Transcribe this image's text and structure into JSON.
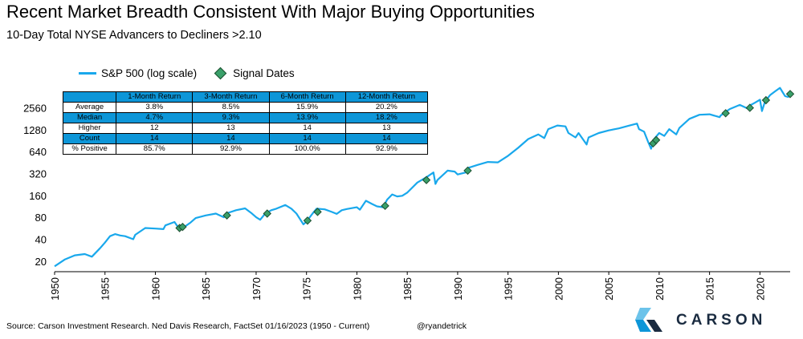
{
  "title": "Recent Market Breadth Consistent With Major Buying Opportunities",
  "subtitle": "10-Day Total NYSE Advancers to Decliners >2.10",
  "legend": {
    "line_label": "S&P 500 (log scale)",
    "marker_label": "Signal Dates"
  },
  "table": {
    "headers": [
      "",
      "1-Month Return",
      "3-Month Return",
      "6-Month Return",
      "12-Month Return"
    ],
    "rows": [
      {
        "label": "Average",
        "values": [
          "3.8%",
          "8.5%",
          "15.9%",
          "20.2%"
        ]
      },
      {
        "label": "Median",
        "values": [
          "4.7%",
          "9.3%",
          "13.9%",
          "18.2%"
        ]
      },
      {
        "label": "Higher",
        "values": [
          "12",
          "13",
          "14",
          "13"
        ]
      },
      {
        "label": "Count",
        "values": [
          "14",
          "14",
          "14",
          "14"
        ]
      },
      {
        "label": "% Positive",
        "values": [
          "85.7%",
          "92.9%",
          "100.0%",
          "92.9%"
        ]
      }
    ]
  },
  "footer": {
    "source": "Source: Carson Investment Research. Ned Davis Research, FactSet 01/16/2023 (1950 - Current)",
    "handle": "@ryandetrick"
  },
  "logo": {
    "text": "CARSON",
    "colors": [
      "#1a2b40",
      "#0d96d8",
      "#6cc3ea"
    ]
  },
  "colors": {
    "line": "#19a8ec",
    "marker_fill": "#3aa06a",
    "marker_edge": "#1b4d2e",
    "table_highlight": "#0d96d8"
  },
  "chart_data": {
    "type": "line",
    "title": "Recent Market Breadth Consistent With Major Buying Opportunities",
    "subtitle": "10-Day Total NYSE Advancers to Decliners >2.10",
    "xlabel": "",
    "ylabel": "",
    "y_scale": "log",
    "xlim": [
      1950,
      2023
    ],
    "ylim": [
      18,
      5000
    ],
    "x_ticks": [
      1950,
      1955,
      1960,
      1965,
      1970,
      1975,
      1980,
      1985,
      1990,
      1995,
      2000,
      2005,
      2010,
      2015,
      2020
    ],
    "y_ticks": [
      20,
      40,
      80,
      160,
      320,
      640,
      1280,
      2560
    ],
    "grid": false,
    "legend_position": "top-left",
    "series": [
      {
        "name": "S&P 500 (log scale)",
        "kind": "line",
        "x": [
          1950,
          1951,
          1952,
          1953,
          1953.7,
          1954.5,
          1955,
          1955.5,
          1956,
          1956.5,
          1957,
          1957.8,
          1958,
          1959,
          1960,
          1960.8,
          1961,
          1961.9,
          1962.2,
          1962.5,
          1962.8,
          1963.5,
          1964,
          1965,
          1966,
          1966.8,
          1967,
          1968,
          1968.9,
          1969.5,
          1970,
          1970.4,
          1970.9,
          1971.5,
          1972,
          1972.9,
          1973.5,
          1974,
          1974.7,
          1975,
          1975.6,
          1976,
          1976.8,
          1977.5,
          1978,
          1978.5,
          1979,
          1980,
          1980.3,
          1980.9,
          1981.5,
          1982,
          1982.6,
          1983,
          1983.5,
          1984,
          1984.5,
          1985,
          1986,
          1987,
          1987.6,
          1987.8,
          1988,
          1989,
          1989.7,
          1990,
          1990.8,
          1991,
          1992,
          1993,
          1994,
          1995,
          1996,
          1997,
          1998,
          1998.6,
          1999,
          1999.9,
          2000.7,
          2001,
          2001.7,
          2002,
          2002.8,
          2003,
          2004,
          2005,
          2006,
          2007,
          2007.8,
          2008,
          2008.5,
          2008.9,
          2009.2,
          2009.5,
          2010,
          2010.5,
          2011,
          2011.7,
          2012,
          2013,
          2014,
          2015,
          2016,
          2016.1,
          2017,
          2018,
          2018.9,
          2019,
          2019.5,
          2020,
          2020.2,
          2020.5,
          2021,
          2021.5,
          2021.99,
          2022.2,
          2022.5,
          2022.8,
          2023
        ],
        "y": [
          17,
          21,
          24,
          25,
          23,
          30,
          36,
          44,
          47,
          45,
          44,
          40,
          46,
          57,
          56,
          55,
          62,
          69,
          60,
          56,
          58,
          68,
          78,
          85,
          90,
          80,
          90,
          100,
          106,
          92,
          80,
          74,
          90,
          100,
          105,
          118,
          105,
          90,
          64,
          70,
          90,
          105,
          103,
          95,
          89,
          100,
          104,
          110,
          102,
          135,
          122,
          113,
          110,
          140,
          165,
          155,
          158,
          175,
          240,
          290,
          330,
          230,
          260,
          350,
          340,
          310,
          330,
          380,
          420,
          460,
          455,
          560,
          720,
          950,
          1100,
          980,
          1300,
          1460,
          1420,
          1150,
          1000,
          1150,
          800,
          1000,
          1150,
          1250,
          1330,
          1450,
          1550,
          1300,
          1200,
          870,
          700,
          950,
          1150,
          1050,
          1300,
          1100,
          1350,
          1800,
          2050,
          2080,
          1900,
          2000,
          2450,
          2800,
          2450,
          2750,
          3000,
          3300,
          2300,
          3100,
          3800,
          4300,
          4800,
          4300,
          3700,
          3600,
          3900
        ]
      },
      {
        "name": "Signal Dates",
        "kind": "scatter",
        "x": [
          1962.4,
          1962.7,
          1967.1,
          1971.1,
          1975.1,
          1976.1,
          1982.8,
          1986.9,
          1991.0,
          2009.4,
          2009.7,
          2016.6,
          2019.0,
          2020.6,
          2023.0
        ],
        "y": [
          57,
          59,
          85,
          90,
          72,
          95,
          115,
          260,
          350,
          830,
          920,
          2150,
          2550,
          3250,
          3950
        ]
      }
    ]
  }
}
